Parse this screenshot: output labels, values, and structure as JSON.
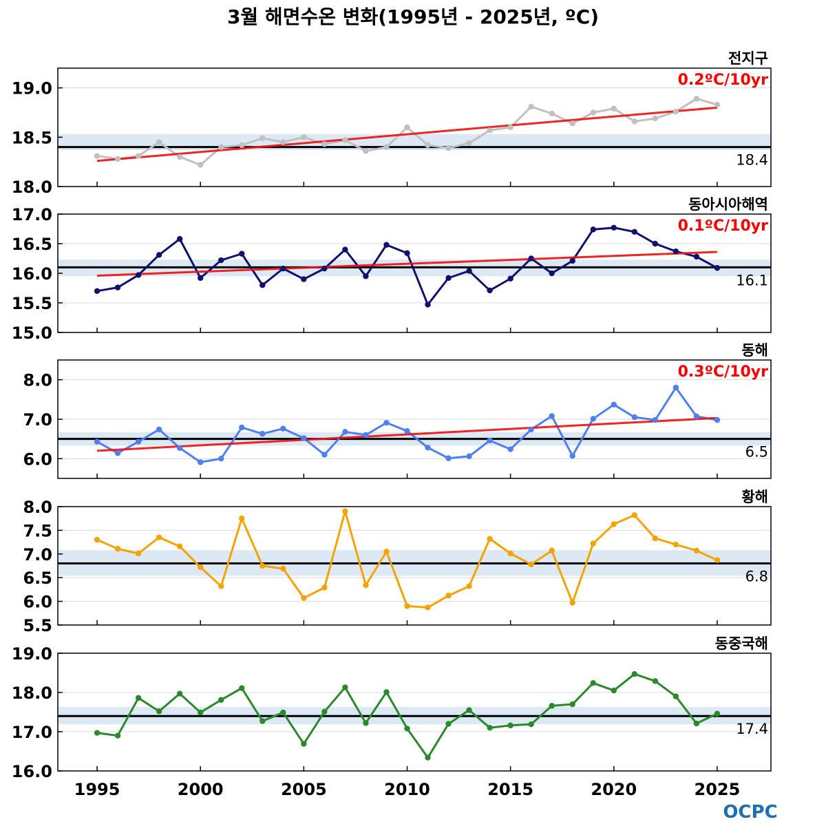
{
  "title": "3월 해면수온 변화(1995년 - 2025년, ºC)",
  "logo": "OCPC",
  "chart_data": {
    "type": "line",
    "x": [
      1995,
      1996,
      1997,
      1998,
      1999,
      2000,
      2001,
      2002,
      2003,
      2004,
      2005,
      2006,
      2007,
      2008,
      2009,
      2010,
      2011,
      2012,
      2013,
      2014,
      2015,
      2016,
      2017,
      2018,
      2019,
      2020,
      2021,
      2022,
      2023,
      2024,
      2025
    ],
    "xlim": [
      1993.1,
      2027.6
    ],
    "x_ticks": [
      "1995",
      "2000",
      "2005",
      "2010",
      "2015",
      "2020",
      "2025"
    ],
    "panels": [
      {
        "name": "전지구",
        "color": "#c0c0c0",
        "ylim": [
          18.0,
          19.2
        ],
        "y_ticks": [
          "18.0",
          "18.5",
          "19.0"
        ],
        "values": [
          18.31,
          18.28,
          18.31,
          18.45,
          18.3,
          18.22,
          18.4,
          18.42,
          18.49,
          18.45,
          18.5,
          18.43,
          18.47,
          18.36,
          18.4,
          18.6,
          18.42,
          18.39,
          18.44,
          18.57,
          18.6,
          18.81,
          18.74,
          18.64,
          18.75,
          18.79,
          18.66,
          18.69,
          18.76,
          18.89,
          18.83
        ],
        "mean": 18.4,
        "mean_label": "18.4",
        "band": [
          18.37,
          18.53
        ],
        "trend_label": "0.2ºC/10yr",
        "trend": [
          18.26,
          18.8
        ]
      },
      {
        "name": "동아시아해역",
        "color": "#10106e",
        "ylim": [
          15.0,
          17.0
        ],
        "y_ticks": [
          "15.0",
          "15.5",
          "16.0",
          "16.5",
          "17.0"
        ],
        "values": [
          15.7,
          15.76,
          15.97,
          16.31,
          16.58,
          15.92,
          16.22,
          16.33,
          15.8,
          16.08,
          15.9,
          16.08,
          16.4,
          15.95,
          16.48,
          16.34,
          15.47,
          15.92,
          16.04,
          15.71,
          15.91,
          16.25,
          16.0,
          16.21,
          16.74,
          16.77,
          16.7,
          16.5,
          16.37,
          16.28,
          16.09
        ],
        "mean": 16.1,
        "mean_label": "16.1",
        "band": [
          15.95,
          16.23
        ],
        "trend_label": "0.1ºC/10yr",
        "trend": [
          15.96,
          16.36
        ]
      },
      {
        "name": "동해",
        "color": "#4f7ff0",
        "ylim": [
          5.5,
          8.5
        ],
        "y_ticks": [
          "6.0",
          "7.0",
          "8.0"
        ],
        "values": [
          6.43,
          6.14,
          6.43,
          6.74,
          6.27,
          5.91,
          6.0,
          6.79,
          6.63,
          6.76,
          6.52,
          6.1,
          6.68,
          6.6,
          6.91,
          6.7,
          6.28,
          6.01,
          6.06,
          6.46,
          6.24,
          6.74,
          7.08,
          6.07,
          7.01,
          7.37,
          7.05,
          6.98,
          7.8,
          7.07,
          6.98
        ],
        "mean": 6.5,
        "mean_label": "6.5",
        "band": [
          6.33,
          6.67
        ],
        "trend_label": "0.3ºC/10yr",
        "trend": [
          6.2,
          7.03
        ]
      },
      {
        "name": "황해",
        "color": "#f5a300",
        "ylim": [
          5.5,
          8.0
        ],
        "y_ticks": [
          "5.5",
          "6.0",
          "6.5",
          "7.0",
          "7.5",
          "8.0"
        ],
        "values": [
          7.3,
          7.11,
          7.01,
          7.35,
          7.16,
          6.72,
          6.32,
          7.75,
          6.75,
          6.69,
          6.07,
          6.29,
          7.9,
          6.34,
          7.05,
          5.9,
          5.87,
          6.12,
          6.32,
          7.32,
          7.01,
          6.78,
          7.07,
          5.97,
          7.22,
          7.63,
          7.82,
          7.33,
          7.2,
          7.07,
          6.87
        ],
        "mean": 6.8,
        "mean_label": "6.8",
        "band": [
          6.54,
          7.08
        ],
        "trend_label": "",
        "trend": null
      },
      {
        "name": "동중국해",
        "color": "#2a8a2a",
        "ylim": [
          16.0,
          19.0
        ],
        "y_ticks": [
          "16.0",
          "17.0",
          "18.0",
          "19.0"
        ],
        "values": [
          16.97,
          16.9,
          17.86,
          17.52,
          17.97,
          17.49,
          17.81,
          18.11,
          17.27,
          17.49,
          16.69,
          17.51,
          18.13,
          17.22,
          18.01,
          17.08,
          16.34,
          17.2,
          17.55,
          17.1,
          17.16,
          17.19,
          17.66,
          17.7,
          18.24,
          18.05,
          18.47,
          18.29,
          17.9,
          17.21,
          17.46
        ],
        "mean": 17.4,
        "mean_label": "17.4",
        "band": [
          17.19,
          17.63
        ],
        "trend_label": "",
        "trend": null
      }
    ]
  }
}
